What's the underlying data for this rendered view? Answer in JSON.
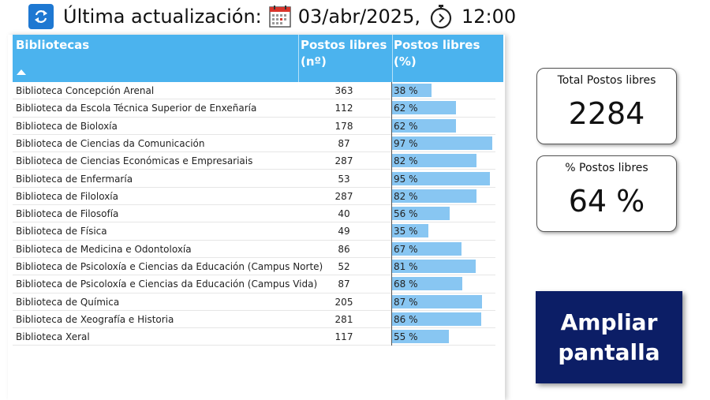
{
  "header": {
    "title": "Última actualización:",
    "date": "03/abr/2025,",
    "time": "12:00"
  },
  "table": {
    "columns": {
      "name": "Bibliotecas",
      "num": "Postos libres (nº)",
      "pct": "Postos libres (%)"
    },
    "rows": [
      {
        "name": "Biblioteca Concepción Arenal",
        "num": "363",
        "pct": "38 %",
        "pct_value": 38
      },
      {
        "name": "Biblioteca da Escola Técnica Superior de Enxeñaría",
        "num": "112",
        "pct": "62 %",
        "pct_value": 62
      },
      {
        "name": "Biblioteca de Bioloxía",
        "num": "178",
        "pct": "62 %",
        "pct_value": 62
      },
      {
        "name": "Biblioteca de Ciencias da Comunicación",
        "num": "87",
        "pct": "97 %",
        "pct_value": 97
      },
      {
        "name": "Biblioteca de Ciencias Económicas e Empresariais",
        "num": "287",
        "pct": "82 %",
        "pct_value": 82
      },
      {
        "name": "Biblioteca de Enfermaría",
        "num": "53",
        "pct": "95 %",
        "pct_value": 95
      },
      {
        "name": "Biblioteca de Filoloxía",
        "num": "287",
        "pct": "82 %",
        "pct_value": 82
      },
      {
        "name": "Biblioteca de Filosofía",
        "num": "40",
        "pct": "56 %",
        "pct_value": 56
      },
      {
        "name": "Biblioteca de Física",
        "num": "49",
        "pct": "35 %",
        "pct_value": 35
      },
      {
        "name": "Biblioteca de Medicina e Odontoloxía",
        "num": "86",
        "pct": "67 %",
        "pct_value": 67
      },
      {
        "name": "Biblioteca de Psicoloxía e Ciencias da Educación (Campus Norte)",
        "num": "52",
        "pct": "81 %",
        "pct_value": 81
      },
      {
        "name": "Biblioteca de Psicoloxía e Ciencias da Educación (Campus Vida)",
        "num": "87",
        "pct": "68 %",
        "pct_value": 68
      },
      {
        "name": "Biblioteca de Química",
        "num": "205",
        "pct": "87 %",
        "pct_value": 87
      },
      {
        "name": "Biblioteca de Xeografía e Historia",
        "num": "281",
        "pct": "86 %",
        "pct_value": 86
      },
      {
        "name": "Biblioteca Xeral",
        "num": "117",
        "pct": "55 %",
        "pct_value": 55
      }
    ]
  },
  "kpis": {
    "total": {
      "label": "Total Postos libres",
      "value": "2284"
    },
    "percent": {
      "label": "% Postos libres",
      "value": "64 %"
    }
  },
  "expand_button": {
    "label": "Ampliar pantalla"
  },
  "colors": {
    "header_blue": "#4bb3ee",
    "bar_blue": "#88c6f2",
    "button_navy": "#0c1e66",
    "refresh_blue": "#1e78d2"
  },
  "icons": [
    "refresh-icon",
    "calendar-icon",
    "stopwatch-icon",
    "sort-ascending-icon"
  ]
}
